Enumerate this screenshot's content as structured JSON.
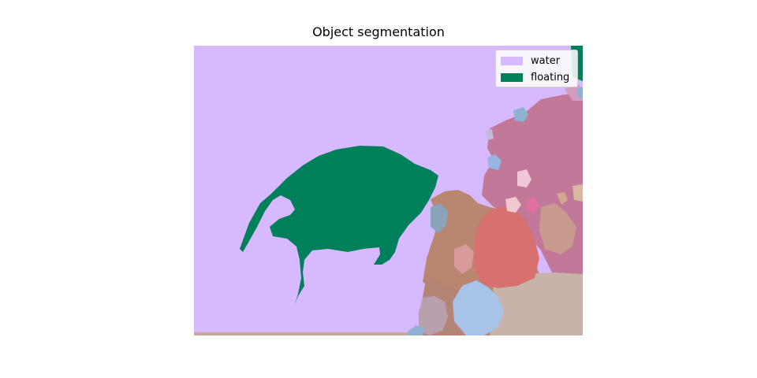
{
  "title": "Object segmentation",
  "legend": [
    {
      "label": "water",
      "color": "#d6b9ff"
    },
    {
      "label": "floating",
      "color": "#00805a"
    }
  ],
  "colors": {
    "background": "#ffffff",
    "rock_mauve": "#c27898",
    "rock_red": "#d7706f",
    "rock_tan": "#bc8a74",
    "rock_beige": "#c8b3ab",
    "rock_blue": "#a8c3e8",
    "rock_slate": "#8aa3b8"
  }
}
